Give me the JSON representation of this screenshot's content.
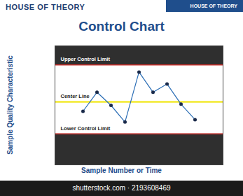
{
  "header": {
    "logo_left": "HOUSE OF THEORY",
    "logo_right": "HOUSE OF THEORY"
  },
  "chart_data": {
    "type": "line",
    "title": "Control Chart",
    "x_label": "Sample Number or Time",
    "y_label": "Sample Quality Characteristic",
    "x": [
      1,
      2,
      3,
      4,
      5,
      6,
      7,
      8,
      9
    ],
    "values": [
      45,
      61,
      50,
      36,
      78,
      61,
      68,
      51,
      38
    ],
    "color": "#2a6db5",
    "marker": "circle",
    "xlim": [
      -1,
      11
    ],
    "ylim": [
      0,
      100
    ],
    "tick_labels": false,
    "grid": false,
    "reference_lines": [
      {
        "label": "Upper Control Limit",
        "value": 84,
        "color": "#d0312d"
      },
      {
        "label": "Center Line",
        "value": 53,
        "color": "#f2ea2e"
      },
      {
        "label": "Lower Control Limit",
        "value": 26,
        "color": "#d0312d"
      }
    ]
  },
  "footer": {
    "watermark": "shutterstock.com · 2193608469"
  }
}
